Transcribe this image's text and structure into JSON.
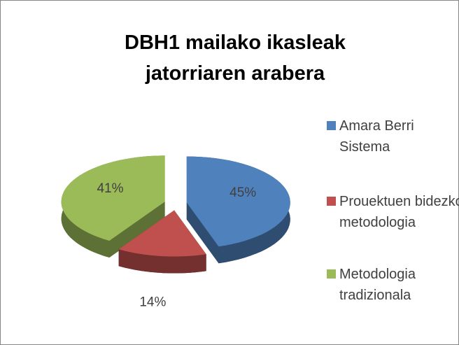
{
  "chart_data": {
    "type": "pie",
    "title": "DBH1 mailako ikasleak jatorriaren arabera",
    "categories": [
      "Amara Berri Sistema",
      "Prouektuen bidezko metodologia",
      "Metodologia tradizionala"
    ],
    "values": [
      45,
      14,
      41
    ],
    "value_labels": [
      "45%",
      "14%",
      "41%"
    ],
    "colors": [
      "#4f81bd",
      "#c0504d",
      "#9bbb59"
    ],
    "legend": "right"
  }
}
